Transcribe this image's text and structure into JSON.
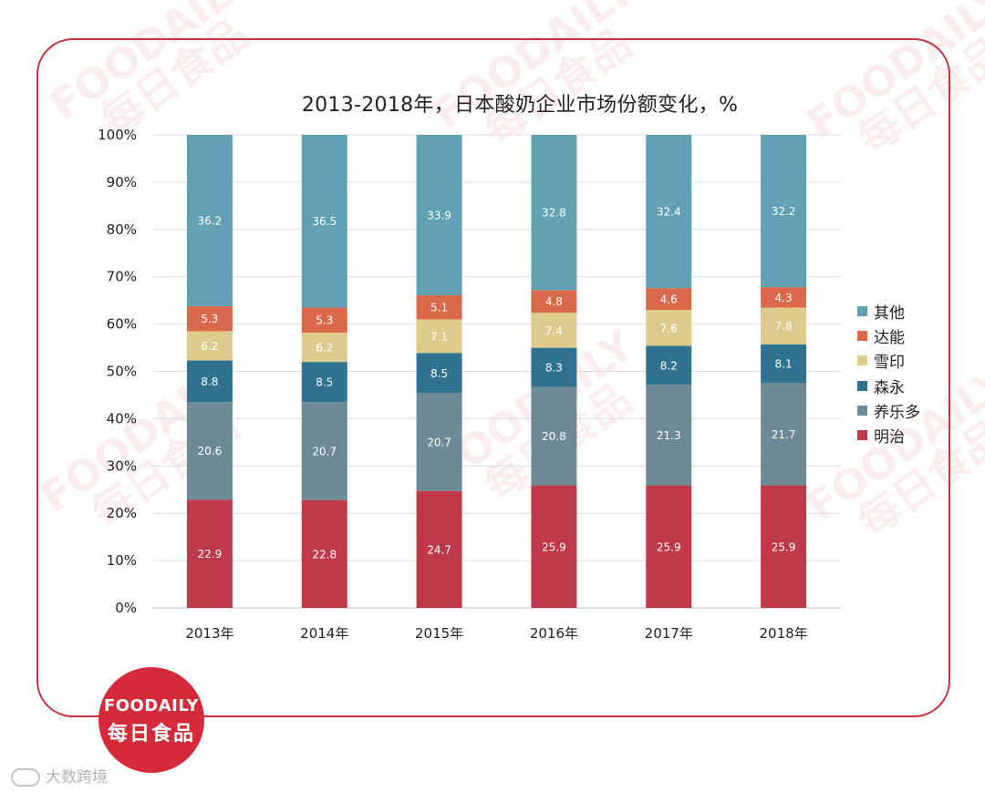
{
  "watermark": {
    "en": "FOODAILY",
    "cn": "每日食品"
  },
  "logo": {
    "en": "FOODAILY",
    "cn": "每日食品"
  },
  "source_label": "大数跨境",
  "colors": {
    "frame": "#c9303f",
    "series": [
      "#c0394a",
      "#6d8a96",
      "#2f7390",
      "#dccb8c",
      "#d9694a",
      "#62a0b4"
    ]
  },
  "chart_data": {
    "type": "bar",
    "stacked": true,
    "title": "2013-2018年，日本酸奶企业市场份额变化，%",
    "categories": [
      "2013年",
      "2014年",
      "2015年",
      "2016年",
      "2017年",
      "2018年"
    ],
    "y_ticks": [
      "0%",
      "10%",
      "20%",
      "30%",
      "40%",
      "50%",
      "60%",
      "70%",
      "80%",
      "90%",
      "100%"
    ],
    "ylim": [
      0,
      100
    ],
    "legend_position": "right",
    "series": [
      {
        "name": "明治",
        "values": [
          22.9,
          22.8,
          24.7,
          25.9,
          25.9,
          25.9
        ]
      },
      {
        "name": "养乐多",
        "values": [
          20.6,
          20.7,
          20.7,
          20.8,
          21.3,
          21.7
        ]
      },
      {
        "name": "森永",
        "values": [
          8.8,
          8.5,
          8.5,
          8.3,
          8.2,
          8.1
        ]
      },
      {
        "name": "雪印",
        "values": [
          6.2,
          6.2,
          7.1,
          7.4,
          7.6,
          7.8
        ]
      },
      {
        "name": "达能",
        "values": [
          5.3,
          5.3,
          5.1,
          4.8,
          4.6,
          4.3
        ]
      },
      {
        "name": "其他",
        "values": [
          36.2,
          36.5,
          33.9,
          32.8,
          32.4,
          32.2
        ]
      }
    ]
  }
}
